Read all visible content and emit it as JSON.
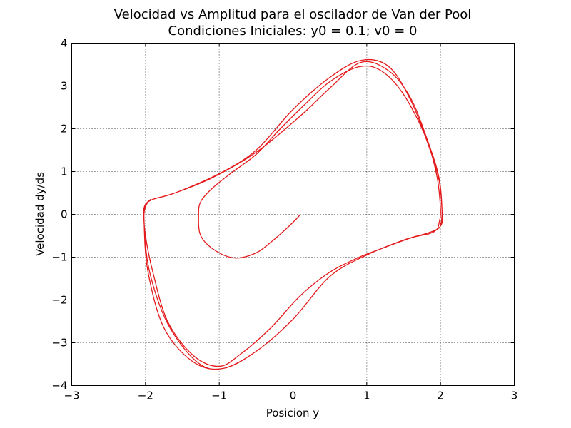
{
  "chart_data": {
    "type": "line",
    "title": "Velocidad vs Amplitud para el oscilador de Van der Pool",
    "subtitle": "Condiciones Iniciales: y0 = 0.1; v0 = 0",
    "xlabel": "Posicion y",
    "ylabel": "Velocidad dy/ds",
    "xlim": [
      -3,
      3
    ],
    "ylim": [
      -4,
      4
    ],
    "x_ticks": [
      -3,
      -2,
      -1,
      0,
      1,
      2,
      3
    ],
    "y_ticks": [
      -4,
      -3,
      -2,
      -1,
      0,
      1,
      2,
      3,
      4
    ],
    "x_tick_labels": [
      "−3",
      "−2",
      "−1",
      "0",
      "1",
      "2",
      "3"
    ],
    "y_tick_labels": [
      "−4",
      "−3",
      "−2",
      "−1",
      "0",
      "1",
      "2",
      "3",
      "4"
    ],
    "grid": true,
    "line_color": "#e41a1c",
    "series": [
      {
        "x": [
          0.1,
          0.05,
          -0.1,
          -0.3,
          -0.5,
          -0.78,
          -1.05,
          -1.25,
          -1.28,
          -1.25,
          -1.1,
          -0.85,
          -0.5,
          -0.2,
          0.15,
          0.5,
          0.9,
          1.2,
          1.5,
          1.8,
          1.95,
          2.0,
          1.98,
          1.95,
          1.85,
          1.6,
          1.2,
          0.9,
          0.5,
          0.1,
          -0.3,
          -0.7,
          -1.0,
          -1.35,
          -1.7,
          -1.9,
          -2.0,
          -2.02,
          -1.98,
          -1.9,
          -1.6,
          -1.1,
          -0.5,
          0.1,
          0.5,
          0.92,
          1.3,
          1.6,
          1.85,
          1.98,
          2.02,
          2.0,
          1.95,
          1.8,
          1.5,
          1.0,
          0.5,
          0.0,
          -0.5,
          -0.95,
          -1.3,
          -1.7,
          -1.95,
          -2.02,
          -2.0,
          -1.9,
          -1.6,
          -1.0,
          -0.5,
          0.0,
          0.5,
          0.93,
          1.3,
          1.6,
          1.85,
          1.98,
          2.02,
          2.02,
          1.95,
          1.8,
          1.5,
          1.0,
          0.5,
          0.0,
          -0.5,
          -0.95,
          -1.35,
          -1.75,
          -1.97,
          -2.02,
          -2.01,
          -1.93
        ],
        "y": [
          0.0,
          -0.1,
          -0.35,
          -0.65,
          -0.9,
          -1.02,
          -0.85,
          -0.5,
          0.0,
          0.3,
          0.6,
          0.95,
          1.4,
          1.95,
          2.55,
          3.1,
          3.45,
          3.35,
          2.8,
          1.8,
          0.9,
          0.1,
          -0.2,
          -0.35,
          -0.45,
          -0.55,
          -0.8,
          -1.0,
          -1.35,
          -1.9,
          -2.65,
          -3.25,
          -3.55,
          -3.3,
          -2.5,
          -1.35,
          -0.5,
          0.0,
          0.25,
          0.35,
          0.5,
          0.85,
          1.45,
          2.3,
          2.95,
          3.55,
          3.35,
          2.7,
          1.6,
          0.85,
          0.1,
          -0.25,
          -0.35,
          -0.45,
          -0.6,
          -0.95,
          -1.45,
          -2.45,
          -3.2,
          -3.6,
          -3.45,
          -2.55,
          -1.3,
          -0.15,
          0.2,
          0.35,
          0.5,
          0.95,
          1.5,
          2.45,
          3.2,
          3.6,
          3.45,
          2.65,
          1.55,
          0.8,
          0.1,
          -0.2,
          -0.35,
          -0.45,
          -0.6,
          -0.95,
          -1.45,
          -2.45,
          -3.2,
          -3.6,
          -3.45,
          -2.65,
          -1.3,
          -0.1,
          0.2,
          0.35
        ]
      }
    ]
  }
}
